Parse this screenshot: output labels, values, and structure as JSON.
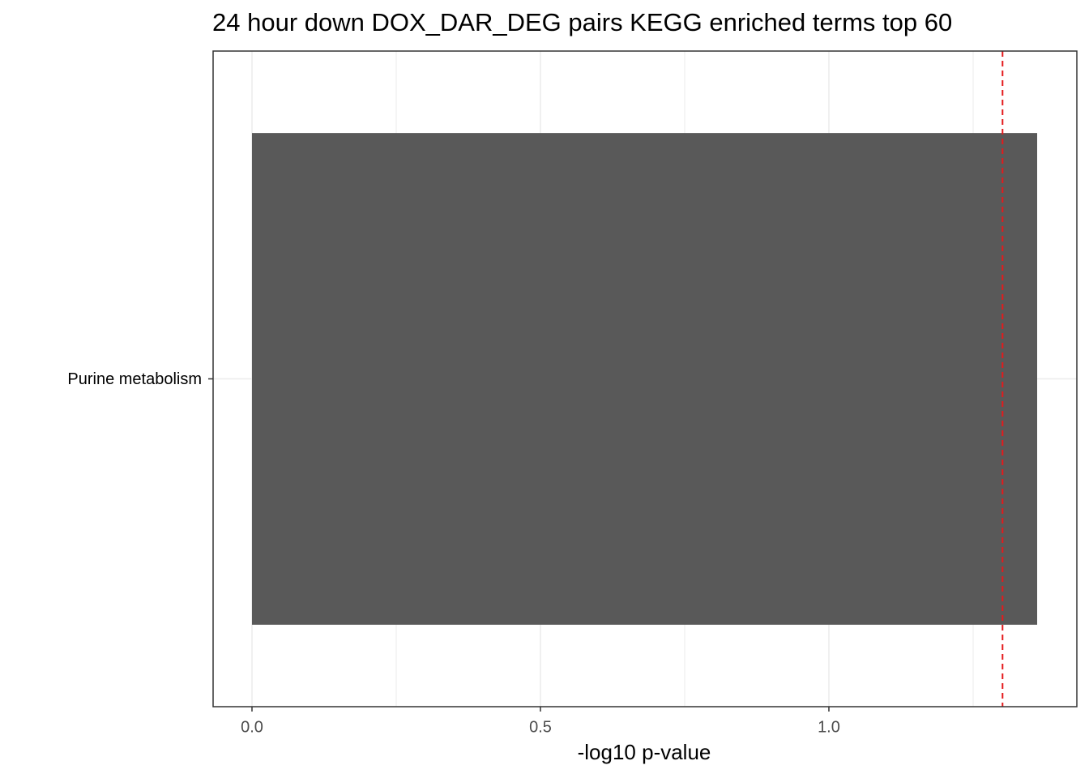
{
  "chart_data": {
    "type": "hbar",
    "title": "24 hour down DOX_DAR_DEG pairs  KEGG enriched terms top 60",
    "x_label": "-log10 p-value",
    "categories": [
      "Purine metabolism"
    ],
    "values": [
      1.361
    ],
    "color": "#595959",
    "xlim": [
      -0.0674,
      1.4298
    ],
    "xticks": [
      {
        "value": 0,
        "label": "0.0"
      },
      0.5,
      {
        "value": 1,
        "label": "1.0"
      }
    ],
    "minor_xticks": [
      0.25,
      0.75,
      1.25
    ],
    "grid": true,
    "reference_line": {
      "value": 1.301,
      "color": "#e41a1c"
    }
  }
}
